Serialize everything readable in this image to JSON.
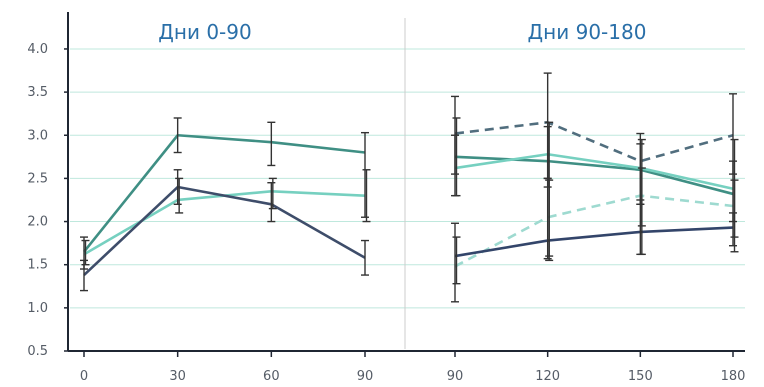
{
  "chart_data": {
    "type": "line",
    "ylim": [
      0.5,
      4.0
    ],
    "y_ticks": [
      "0.5",
      "1.0",
      "1.5",
      "2.0",
      "2.5",
      "3.0",
      "3.5",
      "4.0"
    ],
    "grid": "horizontal",
    "colors": {
      "grid": "#bfe8dd",
      "axis": "#1f2633",
      "divider": "#cccccc",
      "error_bar": "#333333",
      "title": "#2a6fa8"
    },
    "panels": [
      {
        "title": "Дни 0-90",
        "x": [
          0,
          30,
          60,
          90
        ],
        "x_tick_labels": [
          "0",
          "30",
          "60",
          "90"
        ],
        "series": [
          {
            "values": [
              1.65,
              3.0,
              2.92,
              2.8
            ],
            "err_low": [
              1.45,
              2.8,
              2.65,
              2.05
            ],
            "err_high": [
              1.82,
              3.2,
              3.15,
              3.03
            ],
            "color": "#3f8f84",
            "dash": false
          },
          {
            "values": [
              1.62,
              2.25,
              2.35,
              2.3
            ],
            "err_low": [
              1.5,
              2.1,
              2.15,
              2.0
            ],
            "err_high": [
              1.78,
              2.5,
              2.5,
              2.6
            ],
            "color": "#76d0c0",
            "dash": false
          },
          {
            "values": [
              1.38,
              2.4,
              2.2,
              1.58
            ],
            "err_low": [
              1.2,
              2.2,
              2.0,
              1.38
            ],
            "err_high": [
              1.55,
              2.6,
              2.45,
              1.78
            ],
            "color": "#3e4d6a",
            "dash": false
          }
        ]
      },
      {
        "title": "Дни 90-180",
        "x": [
          90,
          120,
          150,
          180
        ],
        "x_tick_labels": [
          "90",
          "120",
          "150",
          "180"
        ],
        "series": [
          {
            "values": [
              3.02,
              3.15,
              2.7,
              3.0
            ],
            "err_low": [
              2.55,
              2.5,
              2.2,
              2.55
            ],
            "err_high": [
              3.45,
              3.72,
              3.02,
              3.48
            ],
            "color": "#516e7e",
            "dash": true
          },
          {
            "values": [
              2.75,
              2.7,
              2.6,
              2.32
            ],
            "err_low": [
              2.3,
              1.55,
              1.62,
              1.65
            ],
            "err_high": [
              3.2,
              3.15,
              2.95,
              2.95
            ],
            "color": "#3f8f84",
            "dash": false
          },
          {
            "values": [
              2.62,
              2.78,
              2.62,
              2.38
            ],
            "err_low": [
              2.3,
              2.4,
              2.2,
              2.0
            ],
            "err_high": [
              3.0,
              3.1,
              2.9,
              2.7
            ],
            "color": "#76d0c0",
            "dash": false
          },
          {
            "values": [
              1.48,
              2.05,
              2.3,
              2.18
            ],
            "err_low": [
              1.28,
              1.6,
              1.95,
              1.82
            ],
            "err_high": [
              1.82,
              2.48,
              2.62,
              2.48
            ],
            "color": "#9edad0",
            "dash": true
          },
          {
            "values": [
              1.6,
              1.78,
              1.88,
              1.93
            ],
            "err_low": [
              1.07,
              1.57,
              1.62,
              1.72
            ],
            "err_high": [
              1.98,
              2.5,
              2.25,
              2.1
            ],
            "color": "#33456a",
            "dash": false
          }
        ]
      }
    ]
  }
}
